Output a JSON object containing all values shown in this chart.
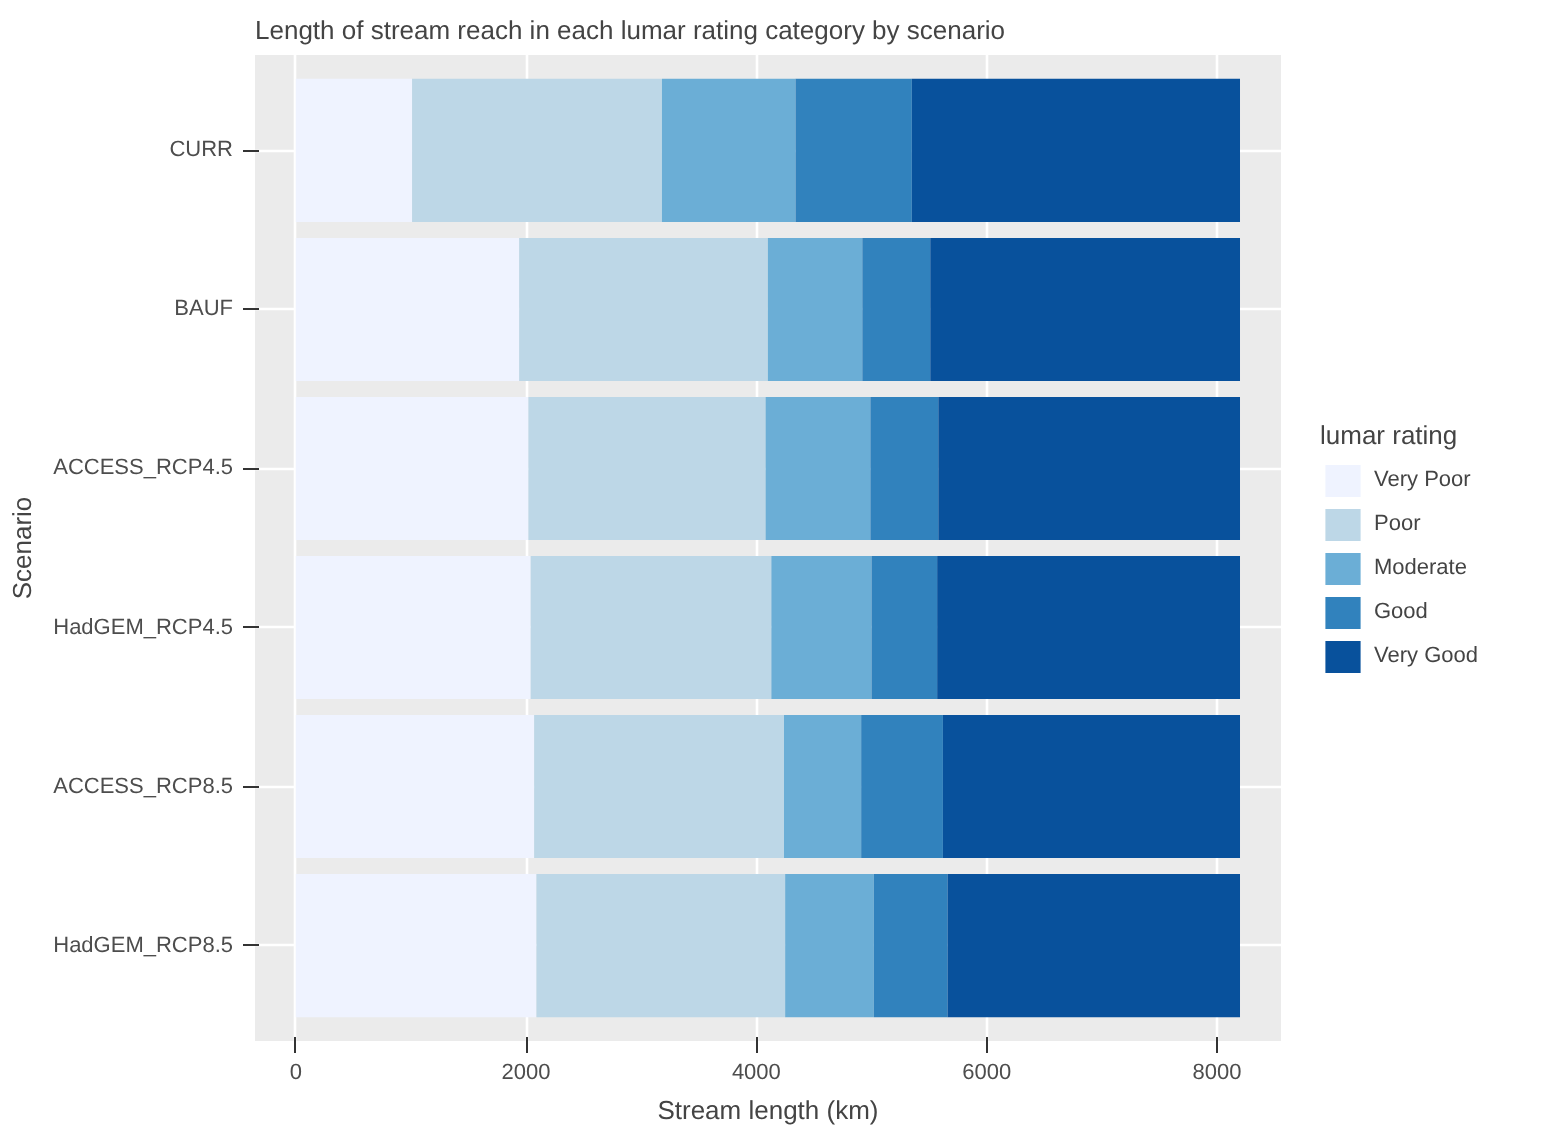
{
  "chart_data": {
    "type": "bar",
    "orientation": "horizontal",
    "stacked": true,
    "title": "Length of stream reach in each lumar rating category by scenario",
    "xlabel": "Stream length (km)",
    "ylabel": "Scenario",
    "legend_title": "lumar rating",
    "categories": [
      "CURR",
      "BAUF",
      "ACCESS_RCP4.5",
      "HadGEM_RCP4.5",
      "ACCESS_RCP8.5",
      "HadGEM_RCP8.5"
    ],
    "series": [
      {
        "name": "Very Poor",
        "color": "#eff3ff",
        "values": [
          1010,
          1940,
          2020,
          2040,
          2070,
          2090
        ]
      },
      {
        "name": "Poor",
        "color": "#bdd7e7",
        "values": [
          2170,
          2160,
          2060,
          2090,
          2170,
          2160
        ]
      },
      {
        "name": "Moderate",
        "color": "#6baed6",
        "values": [
          1160,
          820,
          910,
          870,
          670,
          770
        ]
      },
      {
        "name": "Good",
        "color": "#3182bd",
        "values": [
          1010,
          590,
          590,
          570,
          710,
          640
        ]
      },
      {
        "name": "Very Good",
        "color": "#08519c",
        "values": [
          2850,
          2690,
          2620,
          2630,
          2580,
          2540
        ]
      }
    ],
    "xlim": [
      -354,
      8556
    ],
    "xticks": [
      0,
      2000,
      4000,
      6000,
      8000
    ],
    "grid": true,
    "legend": "right"
  }
}
